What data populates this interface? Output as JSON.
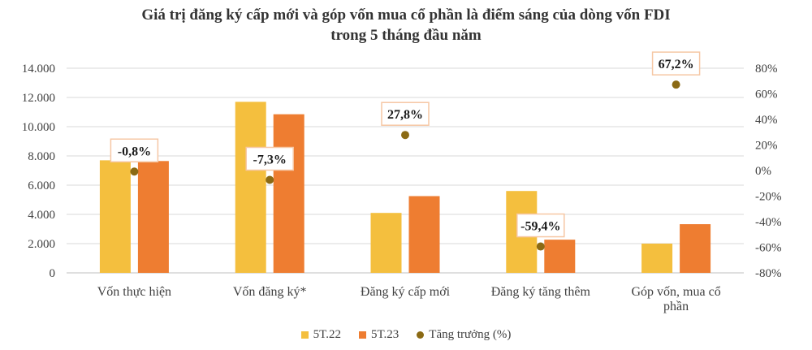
{
  "chart_data": {
    "type": "bar",
    "title_lines": [
      "Giá trị đăng ký cấp mới và góp vốn mua cổ phần là điểm sáng của dòng vốn FDI",
      "trong 5 tháng đầu năm"
    ],
    "categories": [
      [
        "Vốn thực hiện"
      ],
      [
        "Vốn đăng ký*"
      ],
      [
        "Đăng ký cấp mới"
      ],
      [
        "Đăng ký tăng thêm"
      ],
      [
        "Góp vốn, mua cổ",
        "phần"
      ]
    ],
    "series": [
      {
        "name": "5T.22",
        "color": "#F4BF3E",
        "values": [
          7700,
          11700,
          4100,
          5600,
          2000
        ]
      },
      {
        "name": "5T.23",
        "color": "#EE7D31",
        "values": [
          7650,
          10850,
          5250,
          2270,
          3330
        ]
      }
    ],
    "growth": {
      "name": "Tăng trưởng (%)",
      "color": "#8B6A14",
      "values": [
        -0.8,
        -7.3,
        27.8,
        -59.4,
        67.2
      ],
      "labels": [
        "-0,8%",
        "-7,3%",
        "27,8%",
        "-59,4%",
        "67,2%"
      ]
    },
    "left_axis": {
      "ylim": [
        0,
        14000
      ],
      "ticks": [
        0,
        2000,
        4000,
        6000,
        8000,
        10000,
        12000,
        14000
      ],
      "tick_labels": [
        "0",
        "2.000",
        "4.000",
        "6.000",
        "8.000",
        "10.000",
        "12.000",
        "14.000"
      ]
    },
    "right_axis": {
      "ylim": [
        -80,
        80
      ],
      "ticks": [
        -80,
        -60,
        -40,
        -20,
        0,
        20,
        40,
        60,
        80
      ],
      "tick_labels": [
        "-80%",
        "-60%",
        "-40%",
        "-20%",
        "0%",
        "20%",
        "40%",
        "60%",
        "80%"
      ]
    },
    "grid": true,
    "legend_position": "bottom"
  }
}
